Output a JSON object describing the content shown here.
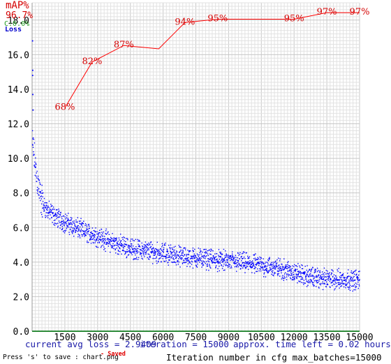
{
  "chart_data": {
    "type": "scatter",
    "x_ticks": [
      "1500",
      "3000",
      "4500",
      "6000",
      "7500",
      "9000",
      "10500",
      "12000",
      "13500",
      "15000"
    ],
    "y_ticks": [
      "0.0",
      "2.0",
      "4.0",
      "6.0",
      "8.0",
      "10.0",
      "12.0",
      "14.0",
      "16.0",
      "18.0"
    ],
    "xlim": [
      0,
      15000
    ],
    "ylim": [
      0,
      19.0
    ],
    "grid": true,
    "legend": {
      "map_label": "mAP%",
      "map_value": "96.7%",
      "conf_label": "C:0.0%",
      "loss_label": "Loss"
    },
    "series": [
      {
        "name": "mAP%",
        "type": "line",
        "color": "#ff0000",
        "x": [
          1500,
          2750,
          4200,
          5800,
          7000,
          8500,
          10500,
          12000,
          13500,
          15000
        ],
        "values": [
          68,
          82,
          87,
          86,
          94,
          95,
          95,
          95,
          97,
          97
        ],
        "labels": [
          "68%",
          "82%",
          "87%",
          "",
          "94%",
          "95%",
          "",
          "95%",
          "97%",
          "97%"
        ],
        "label_x": [
          1500,
          2750,
          4200,
          null,
          7000,
          8500,
          null,
          12000,
          13500,
          15000
        ]
      },
      {
        "name": "Loss",
        "type": "scatter",
        "color": "#0000ff",
        "x": [
          0,
          100,
          200,
          300,
          400,
          500,
          700,
          1000,
          1500,
          2000,
          2500,
          3000,
          3500,
          4000,
          4500,
          5000,
          5500,
          6000,
          6500,
          7000,
          7500,
          8000,
          8500,
          9000,
          9500,
          10000,
          10500,
          11000,
          11500,
          12000,
          12500,
          13000,
          13500,
          14000,
          14500,
          15000
        ],
        "values": [
          11.0,
          10.0,
          9.0,
          8.3,
          7.7,
          7.3,
          7.0,
          6.7,
          6.3,
          6.0,
          5.7,
          5.5,
          5.2,
          5.0,
          4.8,
          4.7,
          4.6,
          4.5,
          4.4,
          4.3,
          4.25,
          4.2,
          4.1,
          4.05,
          4.0,
          3.9,
          3.8,
          3.7,
          3.6,
          3.4,
          3.2,
          3.1,
          3.0,
          3.0,
          3.0,
          2.95
        ]
      }
    ]
  },
  "status": {
    "current_avg_loss": "current avg loss = 2.9409",
    "iteration": "iteration = 15000",
    "time_left": "approx. time left = 0.02 hours"
  },
  "footer": {
    "save_hint": "Press 's' to save : chart.png",
    "saved": "- Saved",
    "axis_caption": "Iteration number  in cfg max_batches=15000"
  },
  "colors": {
    "loss": "#0000ff",
    "map": "#ff0000",
    "grid_minor": "#e2e2e2",
    "grid_major": "#c8c8c8",
    "axis_bottom": "#2e8b3a"
  }
}
